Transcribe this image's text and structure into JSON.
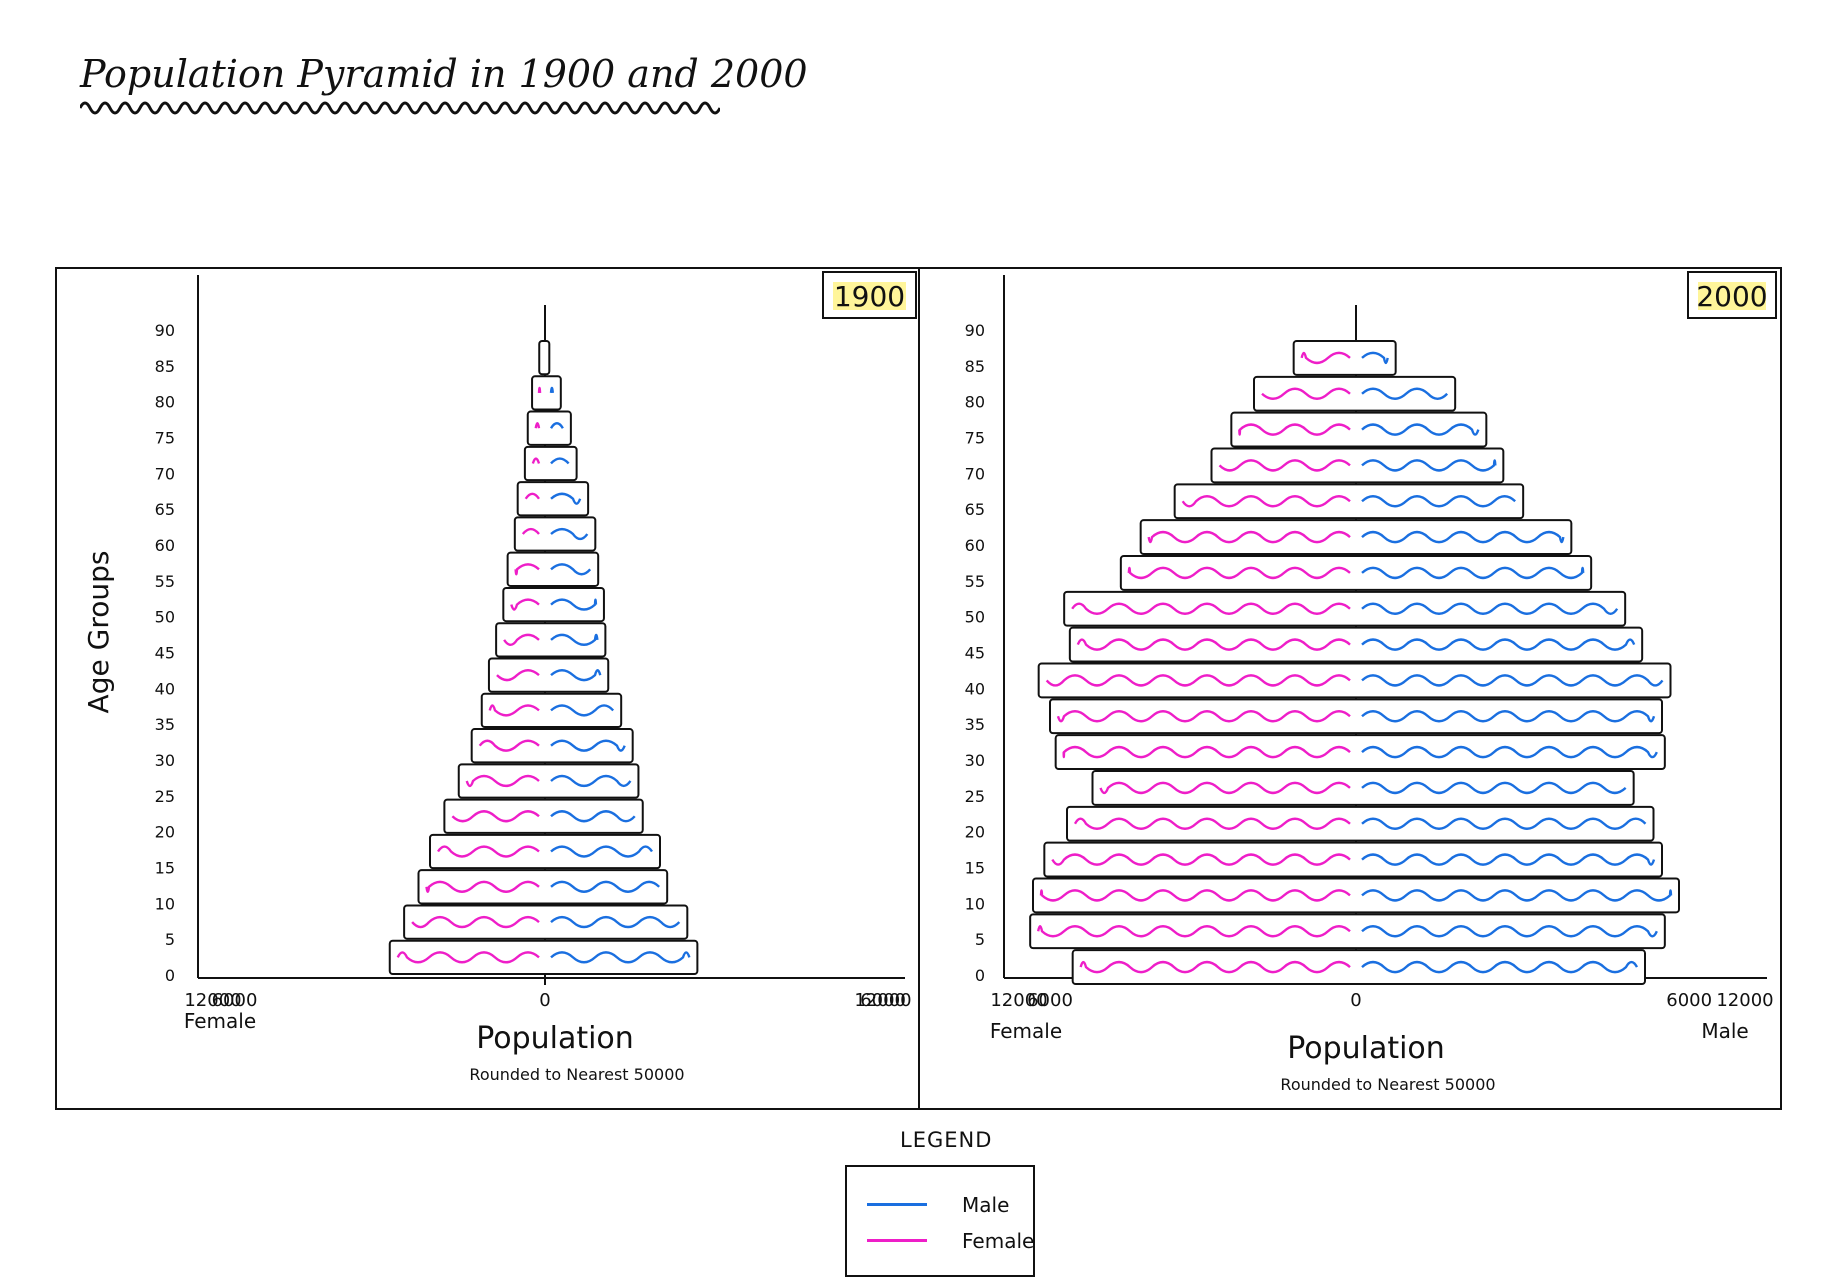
{
  "title": "Population Pyramid in 1900 and 2000",
  "colors": {
    "male": "#1a6fe0",
    "female": "#ee1ec8",
    "year_highlight": "#fff59a"
  },
  "legend": {
    "title": "LEGEND",
    "items": [
      {
        "label": "Male",
        "color": "#1a6fe0"
      },
      {
        "label": "Female",
        "color": "#ee1ec8"
      }
    ]
  },
  "chart_data": [
    {
      "type": "bar",
      "orientation": "horizontal-pyramid",
      "year_label": "1900",
      "ylabel": "Age Groups",
      "xlabel": "Population",
      "xsubtitle": "Rounded to Nearest 50000",
      "left_label": "Female",
      "right_label": "",
      "x_ticks": [
        "12000",
        "6000",
        "0",
        "6000",
        "12000"
      ],
      "xlim": [
        -12000,
        12000
      ],
      "age_ticks": [
        "0",
        "5",
        "10",
        "15",
        "20",
        "25",
        "30",
        "35",
        "40",
        "45",
        "50",
        "55",
        "60",
        "65",
        "70",
        "75",
        "80",
        "85",
        "90"
      ],
      "categories": [
        "0",
        "5",
        "10",
        "15",
        "20",
        "25",
        "30",
        "35",
        "40",
        "45",
        "50",
        "55",
        "60",
        "65",
        "70",
        "75",
        "80",
        "85"
      ],
      "series": [
        {
          "name": "Female",
          "values": [
            5400,
            4900,
            4400,
            4000,
            3500,
            3000,
            2550,
            2200,
            1950,
            1700,
            1450,
            1300,
            1050,
            950,
            700,
            600,
            450,
            200
          ]
        },
        {
          "name": "Male",
          "values": [
            5300,
            4950,
            4250,
            4000,
            3400,
            3250,
            3050,
            2650,
            2200,
            2100,
            2050,
            1850,
            1750,
            1500,
            1100,
            900,
            550,
            150
          ]
        }
      ]
    },
    {
      "type": "bar",
      "orientation": "horizontal-pyramid",
      "year_label": "2000",
      "ylabel": "",
      "xlabel": "Population",
      "xsubtitle": "Rounded to Nearest 50000",
      "left_label": "Female",
      "right_label": "Male",
      "x_ticks": [
        "12000",
        "6000",
        "0",
        "6000",
        "12000"
      ],
      "xlim": [
        -12000,
        12000
      ],
      "age_ticks": [
        "0",
        "5",
        "10",
        "15",
        "20",
        "25",
        "30",
        "35",
        "40",
        "45",
        "50",
        "55",
        "60",
        "65",
        "70",
        "75",
        "80",
        "85",
        "90"
      ],
      "categories": [
        "0",
        "5",
        "10",
        "15",
        "20",
        "25",
        "30",
        "35",
        "40",
        "45",
        "50",
        "55",
        "60",
        "65",
        "70",
        "75",
        "80",
        "85"
      ],
      "series": [
        {
          "name": "Female",
          "values": [
            10000,
            11500,
            11400,
            11000,
            10200,
            9300,
            10600,
            10800,
            11200,
            10100,
            10300,
            8300,
            7600,
            6400,
            5100,
            4400,
            3600,
            2200
          ]
        },
        {
          "name": "Male",
          "values": [
            10200,
            10900,
            11400,
            10800,
            10500,
            9800,
            10900,
            10800,
            11100,
            10100,
            9500,
            8300,
            7600,
            5900,
            5200,
            4600,
            3500,
            1400
          ]
        }
      ]
    }
  ]
}
